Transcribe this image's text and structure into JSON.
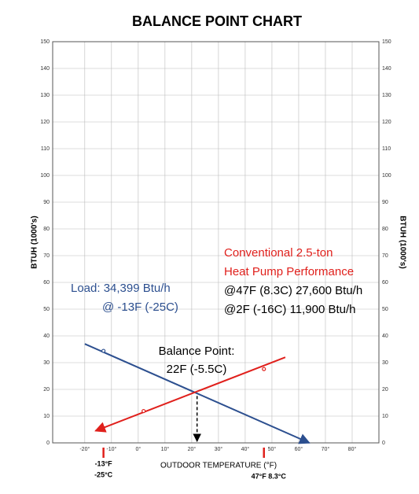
{
  "chart_data": {
    "type": "line",
    "title": "BALANCE POINT CHART",
    "x_label": "OUTDOOR TEMPERATURE (°F)",
    "y_label": "BTUH (1000's)",
    "y2_label": "BTUH (1000's)",
    "xlim": [
      -32,
      90
    ],
    "ylim": [
      0,
      150
    ],
    "xticks": [
      {
        "value": -20,
        "label": "-20°"
      },
      {
        "value": -10,
        "label": "-10°"
      },
      {
        "value": 0,
        "label": "0°"
      },
      {
        "value": 10,
        "label": "10°"
      },
      {
        "value": 20,
        "label": "20°"
      },
      {
        "value": 30,
        "label": "30°"
      },
      {
        "value": 40,
        "label": "40°"
      },
      {
        "value": 50,
        "label": "50°"
      },
      {
        "value": 60,
        "label": "60°"
      },
      {
        "value": 70,
        "label": "70°"
      },
      {
        "value": 80,
        "label": "80°"
      }
    ],
    "yticks": [
      0,
      10,
      20,
      30,
      40,
      50,
      60,
      70,
      80,
      90,
      100,
      110,
      120,
      130,
      140,
      150
    ],
    "y2ticks": [
      0,
      10,
      20,
      30,
      40,
      50,
      60,
      70,
      80,
      90,
      100,
      110,
      120,
      130,
      140,
      150
    ],
    "grid": true,
    "series": [
      {
        "color": "#2c4f8f",
        "x": [
          -20,
          64
        ],
        "values": [
          37,
          0
        ],
        "arrow": "end"
      },
      {
        "color": "#e0201c",
        "x": [
          -16,
          55
        ],
        "values": [
          4.5,
          32
        ],
        "arrow": "start"
      }
    ],
    "points": [
      {
        "x": -13,
        "y": 34.399,
        "color": "#2c4f8f"
      },
      {
        "x": 2,
        "y": 11.9,
        "color": "#e0201c"
      },
      {
        "x": 47,
        "y": 27.6,
        "color": "#e0201c"
      }
    ],
    "balance_point": {
      "x": 22,
      "y": 18.7
    },
    "x_markers": [
      {
        "x": -13,
        "labels": [
          "-13°F",
          "-25°C"
        ]
      },
      {
        "x": 47,
        "labels": [
          "47°F 8.3°C"
        ]
      }
    ],
    "annotations": [
      {
        "text": "Load: 34,399 Btu/h",
        "color": "#2c4f8f"
      },
      {
        "text": "@ -13F (-25C)",
        "color": "#2c4f8f"
      },
      {
        "text": "Conventional 2.5-ton",
        "color": "#e0201c"
      },
      {
        "text": "Heat Pump Performance",
        "color": "#e0201c"
      },
      {
        "text": "@47F (8.3C) 27,600 Btu/h",
        "color": "#000000"
      },
      {
        "text": "@2F (-16C) 11,900 Btu/h",
        "color": "#000000"
      },
      {
        "text": "Balance Point:",
        "color": "#000000"
      },
      {
        "text": "22F (-5.5C)",
        "color": "#000000"
      }
    ]
  }
}
